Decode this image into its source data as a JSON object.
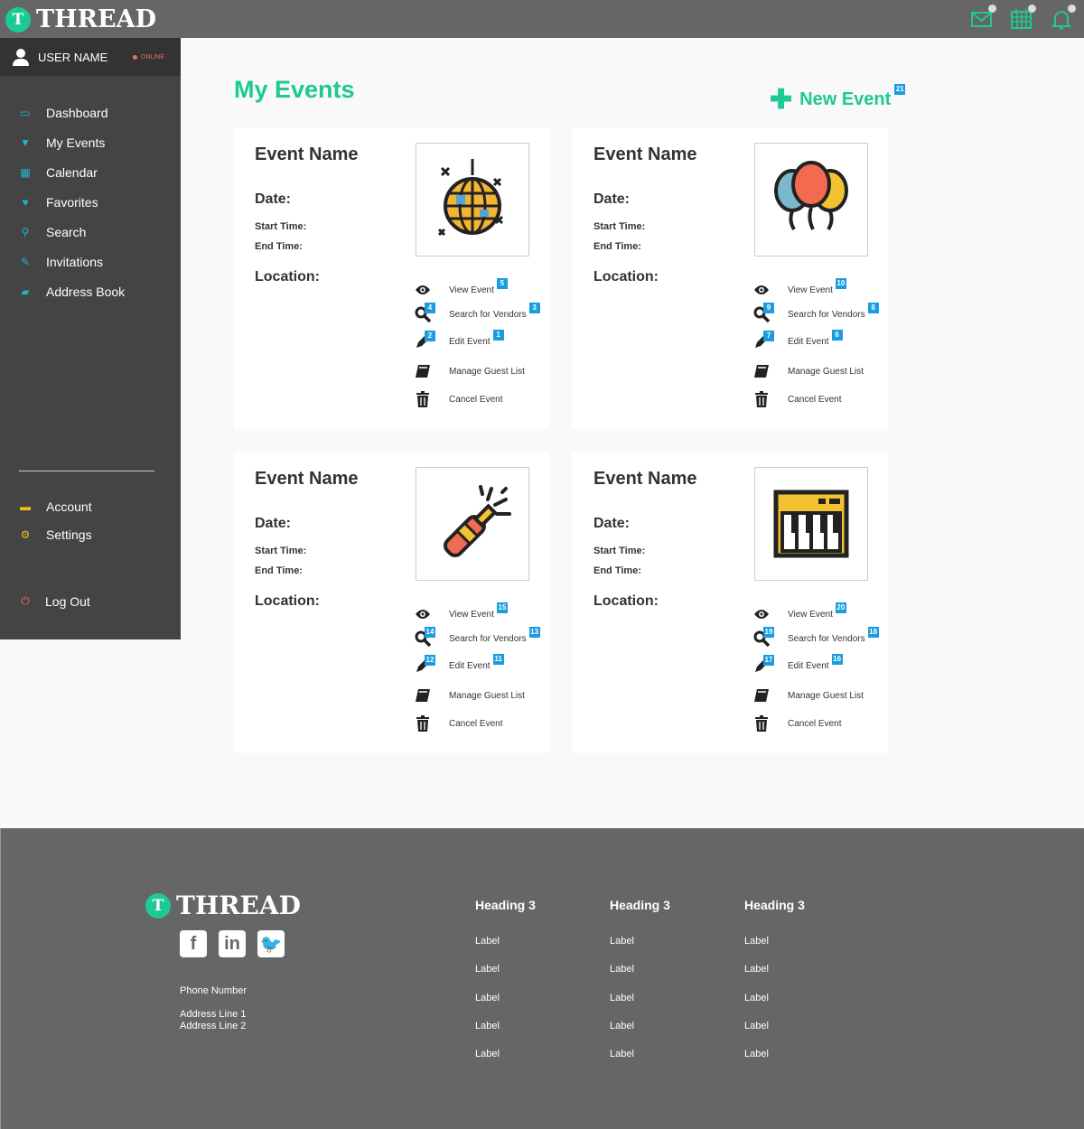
{
  "brand": {
    "name": "THREAD",
    "letter": "T",
    "accent": "#1dc994"
  },
  "header": {
    "icons": [
      "mail-icon",
      "calendar-icon",
      "bell-icon"
    ]
  },
  "sidebar": {
    "user": {
      "name": "USER NAME",
      "status": "ONLINE"
    },
    "items": [
      {
        "label": "Dashboard",
        "icon": "monitor-icon"
      },
      {
        "label": "My Events",
        "icon": "glass-icon"
      },
      {
        "label": "Calendar",
        "icon": "calendar-icon"
      },
      {
        "label": "Favorites",
        "icon": "heart-icon"
      },
      {
        "label": "Search",
        "icon": "search-icon"
      },
      {
        "label": "Invitations",
        "icon": "edit-icon"
      },
      {
        "label": "Address Book",
        "icon": "book-icon"
      }
    ],
    "bottom": [
      {
        "label": "Account",
        "icon": "card-icon"
      },
      {
        "label": "Settings",
        "icon": "gears-icon"
      }
    ],
    "logout": "Log Out"
  },
  "main": {
    "title": "My Events",
    "new_event": {
      "label": "New Event",
      "badge": "21"
    },
    "card_labels": {
      "name": "Event Name",
      "date": "Date:",
      "start": "Start Time:",
      "end": "End Time:",
      "location": "Location:"
    },
    "actions": [
      "View Event",
      "Search for Vendors",
      "Edit Event",
      "Manage Guest List",
      "Cancel Event"
    ],
    "cards": [
      {
        "image": "disco-ball",
        "badges": {
          "view": "5",
          "vendors": "3",
          "search_icon": "4",
          "edit_icon": "2",
          "edit": "1"
        }
      },
      {
        "image": "balloons",
        "badges": {
          "view": "10",
          "vendors": "8",
          "search_icon": "9",
          "edit_icon": "7",
          "edit": "6"
        }
      },
      {
        "image": "champagne",
        "badges": {
          "view": "15",
          "vendors": "13",
          "search_icon": "14",
          "edit_icon": "12",
          "edit": "11"
        }
      },
      {
        "image": "piano",
        "badges": {
          "view": "20",
          "vendors": "18",
          "search_icon": "19",
          "edit_icon": "17",
          "edit": "16"
        }
      }
    ]
  },
  "footer": {
    "phone": "Phone Number",
    "address1": "Address Line 1",
    "address2": "Address Line 2",
    "social": [
      "facebook-icon",
      "linkedin-icon",
      "twitter-icon"
    ],
    "columns": [
      {
        "heading": "Heading 3",
        "labels": [
          "Label",
          "Label",
          "Label",
          "Label",
          "Label"
        ]
      },
      {
        "heading": "Heading 3",
        "labels": [
          "Label",
          "Label",
          "Label",
          "Label",
          "Label"
        ]
      },
      {
        "heading": "Heading 3",
        "labels": [
          "Label",
          "Label",
          "Label",
          "Label",
          "Label"
        ]
      }
    ]
  }
}
